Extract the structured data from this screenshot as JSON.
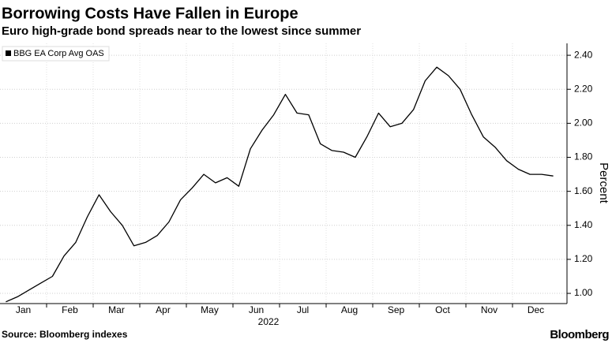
{
  "chart_data": {
    "type": "line",
    "title": "Borrowing Costs Have Fallen in Europe",
    "subtitle": "Euro high-grade bond spreads near to the lowest since summer",
    "y_axis_label": "Percent",
    "x_axis_label": "2022",
    "source": "Source: Bloomberg indexes",
    "brand": "Bloomberg",
    "categories": [
      "Jan",
      null,
      null,
      null,
      "Feb",
      null,
      null,
      null,
      "Mar",
      null,
      null,
      null,
      "Apr",
      null,
      null,
      null,
      "May",
      null,
      null,
      null,
      "Jun",
      null,
      null,
      null,
      "Jul",
      null,
      null,
      null,
      "Aug",
      null,
      null,
      null,
      "Sep",
      null,
      null,
      null,
      "Oct",
      null,
      null,
      null,
      "Nov",
      null,
      null,
      null,
      "Dec",
      null,
      null,
      null
    ],
    "series": [
      {
        "name": "BBG EA Corp Avg OAS",
        "color": "#000000",
        "values": [
          0.95,
          0.98,
          1.02,
          1.06,
          1.1,
          1.22,
          1.3,
          1.45,
          1.58,
          1.48,
          1.4,
          1.28,
          1.3,
          1.34,
          1.42,
          1.55,
          1.62,
          1.7,
          1.65,
          1.68,
          1.63,
          1.85,
          1.96,
          2.05,
          2.17,
          2.06,
          2.05,
          1.88,
          1.84,
          1.83,
          1.8,
          1.92,
          2.06,
          1.98,
          2.0,
          2.08,
          2.25,
          2.33,
          2.28,
          2.2,
          2.05,
          1.92,
          1.86,
          1.78,
          1.73,
          1.7,
          1.7,
          1.69
        ]
      }
    ],
    "ylim": [
      0.94,
      2.47
    ],
    "yticks": [
      {
        "value": 1,
        "label": "1.00"
      },
      {
        "value": 1.2,
        "label": "1.20"
      },
      {
        "value": 1.4,
        "label": "1.40"
      },
      {
        "value": 1.6,
        "label": "1.60"
      },
      {
        "value": 1.8,
        "label": "1.80"
      },
      {
        "value": 2,
        "label": "2.00"
      },
      {
        "value": 2.2,
        "label": "2.20"
      },
      {
        "value": 2.4,
        "label": "2.40"
      }
    ],
    "grid": true,
    "legend": "top-left"
  }
}
